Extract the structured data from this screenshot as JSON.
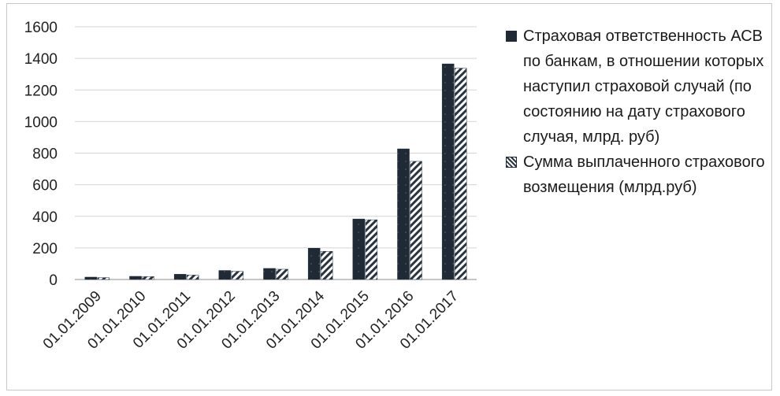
{
  "chart_data": {
    "type": "bar",
    "title": "",
    "xlabel": "",
    "ylabel": "",
    "ylim": [
      0,
      1600
    ],
    "yticks": [
      0,
      200,
      400,
      600,
      800,
      1000,
      1200,
      1400,
      1600
    ],
    "grid": "horizontal",
    "legend_position": "right",
    "categories": [
      "01.01.2009",
      "01.01.2010",
      "01.01.2011",
      "01.01.2012",
      "01.01.2013",
      "01.01.2014",
      "01.01.2015",
      "01.01.2016",
      "01.01.2017"
    ],
    "series": [
      {
        "name": "Страховая ответственность АСВ по банкам, в отношении которых наступил страховой случай (по состоянию на дату страхового случая, млрд. руб)",
        "style": "solid",
        "color": "#1f2a36",
        "values": [
          15,
          20,
          33,
          57,
          70,
          198,
          383,
          827,
          1365
        ]
      },
      {
        "name": "Сумма выплаченного страхового возмещения (млрд.руб)",
        "style": "hatched",
        "color": "#2a3542",
        "values": [
          12,
          18,
          28,
          52,
          65,
          178,
          378,
          748,
          1338
        ]
      }
    ]
  }
}
